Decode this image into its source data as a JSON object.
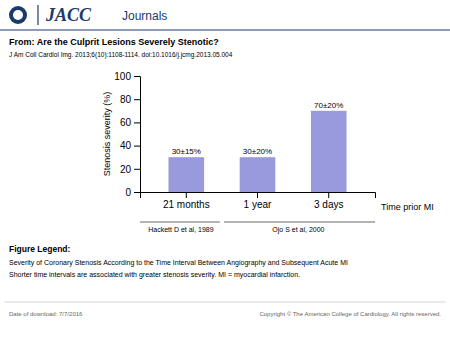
{
  "chart_data": {
    "type": "bar",
    "title": "From: Are the Culprit Lesions Severely Stenotic?",
    "subtitle": "J Am Coll Cardiol Img. 2013;6(10):1108-1114. doi:10.1016/j.jcmg.2013.05.004",
    "categories": [
      "21 months",
      "1 year",
      "3 days"
    ],
    "values": [
      30,
      30,
      70
    ],
    "value_labels": [
      "30±15%",
      "30±20%",
      "70±20%"
    ],
    "color": "#9999dd",
    "xlabel": "Time prior MI",
    "ylabel": "Stenosis severity (%)",
    "ylim": [
      0,
      100
    ],
    "yticks": [
      0,
      20,
      40,
      60,
      80,
      100
    ],
    "grid": false,
    "annotations": [
      "JACC",
      "Journals",
      "Hackett D et al, 1989",
      "Ojo S et al, 2000",
      "Figure Legend:",
      "Severity of Coronary Stenosis According to the Time Interval Between Angiography and Subsequent Acute MI",
      "Shorter time intervals are associated with greater stenosis severity.  MI = myocardial infarction.",
      "Date of download: 7/7/2016",
      "Copyright © The American College of Cardiology. All rights reserved."
    ]
  }
}
